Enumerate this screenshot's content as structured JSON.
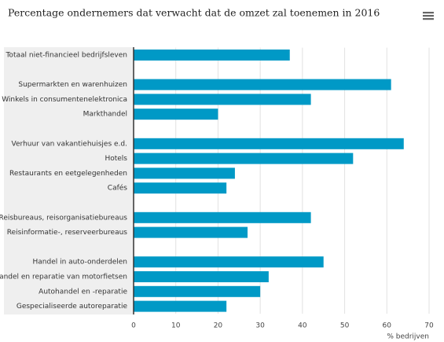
{
  "chart_data": {
    "type": "bar",
    "orientation": "horizontal",
    "title": "Percentage ondernemers dat verwacht dat de omzet zal toenemen in 2016",
    "x_label": "% bedrijven",
    "categories": [
      "Totaal niet-financieel bedrijfsleven",
      null,
      "Supermarkten en warenhuizen",
      "Winkels in consumentenelektronica",
      "Markthandel",
      null,
      "Verhuur van vakantiehuisjes e.d.",
      "Hotels",
      "Restaurants en eetgelegenheden",
      "Cafés",
      null,
      "Reisbureaus, reisorganisatiebureaus",
      "Reisinformatie-, reserveerbureaus",
      null,
      "Handel in auto-onderdelen",
      "Handel en reparatie van motorfietsen",
      "Autohandel en -reparatie",
      "Gespecialiseerde autoreparatie"
    ],
    "values": [
      37,
      null,
      61,
      42,
      20,
      null,
      64,
      52,
      24,
      22,
      null,
      42,
      27,
      null,
      45,
      32,
      30,
      22
    ],
    "color": "#0099c6",
    "xlim": [
      0,
      70
    ],
    "xticks": [
      0,
      10,
      20,
      30,
      40,
      50,
      60,
      70
    ],
    "grid": true
  }
}
